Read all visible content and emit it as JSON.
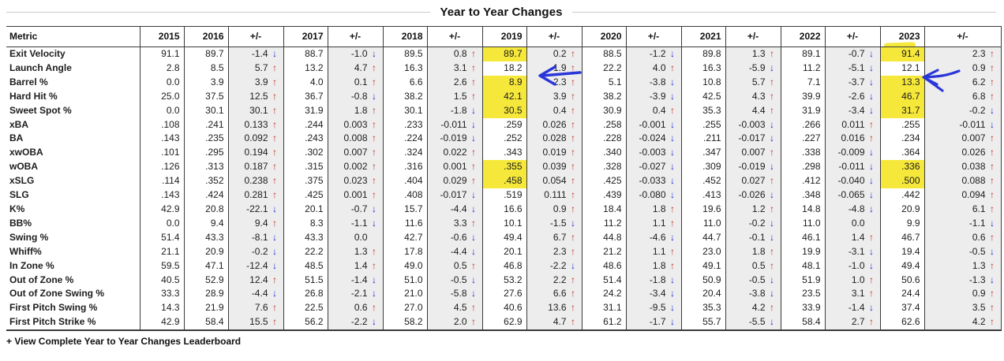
{
  "title": "Year to Year Changes",
  "footer": {
    "link_label": "+ View Complete Year to Year Changes Leaderboard"
  },
  "icons": {
    "up": "↑",
    "down": "↓"
  },
  "colors": {
    "up_arrow": "#c1302a",
    "down_arrow": "#1f2bd8",
    "delta_column_bg": "#ededed",
    "highlighter": "#f6e83a",
    "annotation_blue": "#2b36d8",
    "grid_line": "#3a3a3a"
  },
  "chart_data": {
    "type": "table",
    "title": "Year to Year Changes",
    "columns": [
      "Metric",
      "2015",
      "2016",
      "+/-",
      "2017",
      "+/-",
      "2018",
      "+/-",
      "2019",
      "+/-",
      "2020",
      "+/-",
      "2021",
      "+/-",
      "2022",
      "+/-",
      "2023",
      "+/-"
    ],
    "years": [
      "2015",
      "2016",
      "2017",
      "2018",
      "2019",
      "2020",
      "2021",
      "2022",
      "2023"
    ],
    "rows": [
      {
        "metric": "Exit Velocity",
        "values": [
          "91.1",
          "89.7",
          "88.7",
          "89.5",
          "89.7",
          "88.5",
          "89.8",
          "89.1",
          "91.4"
        ],
        "deltas": [
          "-1.4",
          "-1.0",
          "0.8",
          "0.2",
          "-1.2",
          "1.3",
          "-0.7",
          "2.3"
        ],
        "dirs": [
          "d",
          "d",
          "u",
          "u",
          "d",
          "u",
          "d",
          "u"
        ],
        "hl": [
          4,
          8
        ]
      },
      {
        "metric": "Launch Angle",
        "values": [
          "2.8",
          "8.5",
          "13.2",
          "16.3",
          "18.2",
          "22.2",
          "16.3",
          "11.2",
          "12.1"
        ],
        "deltas": [
          "5.7",
          "4.7",
          "3.1",
          "1.9",
          "4.0",
          "-5.9",
          "-5.1",
          "0.9"
        ],
        "dirs": [
          "u",
          "u",
          "u",
          "u",
          "u",
          "d",
          "d",
          "u"
        ],
        "hl": []
      },
      {
        "metric": "Barrel %",
        "values": [
          "0.0",
          "3.9",
          "4.0",
          "6.6",
          "8.9",
          "5.1",
          "10.8",
          "7.1",
          "13.3"
        ],
        "deltas": [
          "3.9",
          "0.1",
          "2.6",
          "2.3",
          "-3.8",
          "5.7",
          "-3.7",
          "6.2"
        ],
        "dirs": [
          "u",
          "u",
          "u",
          "u",
          "d",
          "u",
          "d",
          "u"
        ],
        "hl": [
          4,
          8
        ]
      },
      {
        "metric": "Hard Hit %",
        "values": [
          "25.0",
          "37.5",
          "36.7",
          "38.2",
          "42.1",
          "38.2",
          "42.5",
          "39.9",
          "46.7"
        ],
        "deltas": [
          "12.5",
          "-0.8",
          "1.5",
          "3.9",
          "-3.9",
          "4.3",
          "-2.6",
          "6.8"
        ],
        "dirs": [
          "u",
          "d",
          "u",
          "u",
          "d",
          "u",
          "d",
          "u"
        ],
        "hl": [
          4,
          8
        ]
      },
      {
        "metric": "Sweet Spot %",
        "values": [
          "0.0",
          "30.1",
          "31.9",
          "30.1",
          "30.5",
          "30.9",
          "35.3",
          "31.9",
          "31.7"
        ],
        "deltas": [
          "30.1",
          "1.8",
          "-1.8",
          "0.4",
          "0.4",
          "4.4",
          "-3.4",
          "-0.2"
        ],
        "dirs": [
          "u",
          "u",
          "d",
          "u",
          "u",
          "u",
          "d",
          "d"
        ],
        "hl": [
          4,
          8
        ]
      },
      {
        "metric": "xBA",
        "values": [
          ".108",
          ".241",
          ".244",
          ".233",
          ".259",
          ".258",
          ".255",
          ".266",
          ".255"
        ],
        "deltas": [
          "0.133",
          "0.003",
          "-0.011",
          "0.026",
          "-0.001",
          "-0.003",
          "0.011",
          "-0.011"
        ],
        "dirs": [
          "u",
          "u",
          "d",
          "u",
          "d",
          "d",
          "u",
          "d"
        ],
        "hl": []
      },
      {
        "metric": "BA",
        "values": [
          ".143",
          ".235",
          ".243",
          ".224",
          ".252",
          ".228",
          ".211",
          ".227",
          ".234"
        ],
        "deltas": [
          "0.092",
          "0.008",
          "-0.019",
          "0.028",
          "-0.024",
          "-0.017",
          "0.016",
          "0.007"
        ],
        "dirs": [
          "u",
          "u",
          "d",
          "u",
          "d",
          "d",
          "u",
          "u"
        ],
        "hl": []
      },
      {
        "metric": "xwOBA",
        "values": [
          ".101",
          ".295",
          ".302",
          ".324",
          ".343",
          ".340",
          ".347",
          ".338",
          ".364"
        ],
        "deltas": [
          "0.194",
          "0.007",
          "0.022",
          "0.019",
          "-0.003",
          "0.007",
          "-0.009",
          "0.026"
        ],
        "dirs": [
          "u",
          "u",
          "u",
          "u",
          "d",
          "u",
          "d",
          "u"
        ],
        "hl": []
      },
      {
        "metric": "wOBA",
        "values": [
          ".126",
          ".313",
          ".315",
          ".316",
          ".355",
          ".328",
          ".309",
          ".298",
          ".336"
        ],
        "deltas": [
          "0.187",
          "0.002",
          "0.001",
          "0.039",
          "-0.027",
          "-0.019",
          "-0.011",
          "0.038"
        ],
        "dirs": [
          "u",
          "u",
          "u",
          "u",
          "d",
          "d",
          "d",
          "u"
        ],
        "hl": [
          4,
          8
        ]
      },
      {
        "metric": "xSLG",
        "values": [
          ".114",
          ".352",
          ".375",
          ".404",
          ".458",
          ".425",
          ".452",
          ".412",
          ".500"
        ],
        "deltas": [
          "0.238",
          "0.023",
          "0.029",
          "0.054",
          "-0.033",
          "0.027",
          "-0.040",
          "0.088"
        ],
        "dirs": [
          "u",
          "u",
          "u",
          "u",
          "d",
          "u",
          "d",
          "u"
        ],
        "hl": [
          4,
          8
        ]
      },
      {
        "metric": "SLG",
        "values": [
          ".143",
          ".424",
          ".425",
          ".408",
          ".519",
          ".439",
          ".413",
          ".348",
          ".442"
        ],
        "deltas": [
          "0.281",
          "0.001",
          "-0.017",
          "0.111",
          "-0.080",
          "-0.026",
          "-0.065",
          "0.094"
        ],
        "dirs": [
          "u",
          "u",
          "d",
          "u",
          "d",
          "d",
          "d",
          "u"
        ],
        "hl": []
      },
      {
        "metric": "K%",
        "values": [
          "42.9",
          "20.8",
          "20.1",
          "15.7",
          "16.6",
          "18.4",
          "19.6",
          "14.8",
          "20.9"
        ],
        "deltas": [
          "-22.1",
          "-0.7",
          "-4.4",
          "0.9",
          "1.8",
          "1.2",
          "-4.8",
          "6.1"
        ],
        "dirs": [
          "d",
          "d",
          "d",
          "u",
          "u",
          "u",
          "d",
          "u"
        ],
        "hl": []
      },
      {
        "metric": "BB%",
        "values": [
          "0.0",
          "9.4",
          "8.3",
          "11.6",
          "10.1",
          "11.2",
          "11.0",
          "11.0",
          "9.9"
        ],
        "deltas": [
          "9.4",
          "-1.1",
          "3.3",
          "-1.5",
          "1.1",
          "-0.2",
          "0.0",
          "-1.1"
        ],
        "dirs": [
          "u",
          "d",
          "u",
          "d",
          "u",
          "d",
          "",
          "d"
        ],
        "hl": []
      },
      {
        "metric": "Swing %",
        "values": [
          "51.4",
          "43.3",
          "43.3",
          "42.7",
          "49.4",
          "44.8",
          "44.7",
          "46.1",
          "46.7"
        ],
        "deltas": [
          "-8.1",
          "0.0",
          "-0.6",
          "6.7",
          "-4.6",
          "-0.1",
          "1.4",
          "0.6"
        ],
        "dirs": [
          "d",
          "",
          "d",
          "u",
          "d",
          "d",
          "u",
          "u"
        ],
        "hl": []
      },
      {
        "metric": "Whiff%",
        "values": [
          "21.1",
          "20.9",
          "22.2",
          "17.8",
          "20.1",
          "21.2",
          "23.0",
          "19.9",
          "19.4"
        ],
        "deltas": [
          "-0.2",
          "1.3",
          "-4.4",
          "2.3",
          "1.1",
          "1.8",
          "-3.1",
          "-0.5"
        ],
        "dirs": [
          "d",
          "u",
          "d",
          "u",
          "u",
          "u",
          "d",
          "d"
        ],
        "hl": []
      },
      {
        "metric": "In Zone %",
        "values": [
          "59.5",
          "47.1",
          "48.5",
          "49.0",
          "46.8",
          "48.6",
          "49.1",
          "48.1",
          "49.4"
        ],
        "deltas": [
          "-12.4",
          "1.4",
          "0.5",
          "-2.2",
          "1.8",
          "0.5",
          "-1.0",
          "1.3"
        ],
        "dirs": [
          "d",
          "u",
          "u",
          "d",
          "u",
          "u",
          "d",
          "u"
        ],
        "hl": []
      },
      {
        "metric": "Out of Zone %",
        "values": [
          "40.5",
          "52.9",
          "51.5",
          "51.0",
          "53.2",
          "51.4",
          "50.9",
          "51.9",
          "50.6"
        ],
        "deltas": [
          "12.4",
          "-1.4",
          "-0.5",
          "2.2",
          "-1.8",
          "-0.5",
          "1.0",
          "-1.3"
        ],
        "dirs": [
          "u",
          "d",
          "d",
          "u",
          "d",
          "d",
          "u",
          "d"
        ],
        "hl": []
      },
      {
        "metric": "Out of Zone Swing %",
        "values": [
          "33.3",
          "28.9",
          "26.8",
          "21.0",
          "27.6",
          "24.2",
          "20.4",
          "23.5",
          "24.4"
        ],
        "deltas": [
          "-4.4",
          "-2.1",
          "-5.8",
          "6.6",
          "-3.4",
          "-3.8",
          "3.1",
          "0.9"
        ],
        "dirs": [
          "d",
          "d",
          "d",
          "u",
          "d",
          "d",
          "u",
          "u"
        ],
        "hl": []
      },
      {
        "metric": "First Pitch Swing %",
        "values": [
          "14.3",
          "21.9",
          "22.5",
          "27.0",
          "40.6",
          "31.1",
          "35.3",
          "33.9",
          "37.4"
        ],
        "deltas": [
          "7.6",
          "0.6",
          "4.5",
          "13.6",
          "-9.5",
          "4.2",
          "-1.4",
          "3.5"
        ],
        "dirs": [
          "u",
          "u",
          "u",
          "u",
          "d",
          "u",
          "d",
          "u"
        ],
        "hl": []
      },
      {
        "metric": "First Pitch Strike %",
        "values": [
          "42.9",
          "58.4",
          "56.2",
          "58.2",
          "62.9",
          "61.2",
          "55.7",
          "58.4",
          "62.6"
        ],
        "deltas": [
          "15.5",
          "-2.2",
          "2.0",
          "4.7",
          "-1.7",
          "-5.5",
          "2.7",
          "4.2"
        ],
        "dirs": [
          "u",
          "d",
          "u",
          "u",
          "d",
          "d",
          "u",
          "u"
        ],
        "hl": []
      }
    ],
    "annotations": {
      "highlighter_color": "#f6e83a",
      "header_highlight": "2023",
      "highlighted_values_2019": [
        "89.7",
        "8.9",
        "42.1",
        "30.5",
        ".355",
        ".458"
      ],
      "highlighted_values_2023": [
        "91.4",
        "13.3",
        "46.7",
        "31.7",
        ".336",
        ".500"
      ],
      "drawn_arrows": [
        "blue arrow pointing left at Launch Angle 2019 value 18.2",
        "blue arrow pointing left at Launch Angle 2023 value 12.1"
      ]
    }
  }
}
